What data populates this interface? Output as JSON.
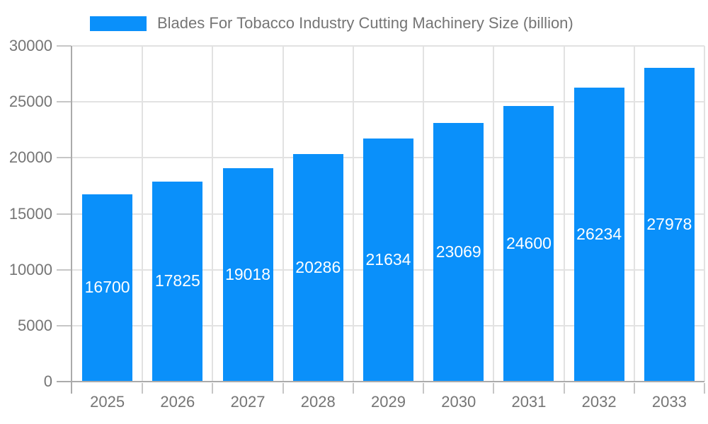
{
  "legend": {
    "label": "Blades For Tobacco Industry Cutting Machinery Size (billion)"
  },
  "chart_data": {
    "type": "bar",
    "title": "Blades For Tobacco Industry Cutting Machinery Size (billion)",
    "categories": [
      "2025",
      "2026",
      "2027",
      "2028",
      "2029",
      "2030",
      "2031",
      "2032",
      "2033"
    ],
    "values": [
      16700,
      17825,
      19018,
      20286,
      21634,
      23069,
      24600,
      26234,
      27978
    ],
    "xlabel": "",
    "ylabel": "",
    "ylim": [
      0,
      30000
    ],
    "yticks": [
      0,
      5000,
      10000,
      15000,
      20000,
      25000,
      30000
    ],
    "grid": true,
    "legend_position": "top",
    "bar_color": "#0a90fa",
    "bar_label_color": "#ffffff",
    "axis_text_color": "#757575",
    "grid_color": "#e2e2e2",
    "axis_line_color": "#ababab"
  }
}
